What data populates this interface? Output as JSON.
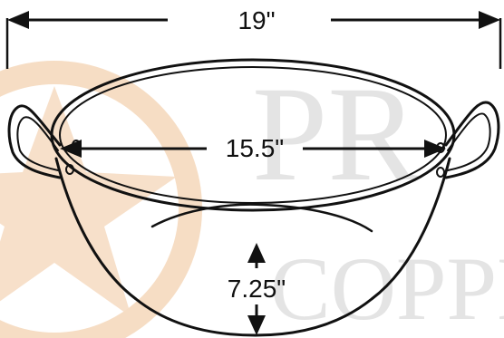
{
  "dimensions": {
    "overall_width": "19\"",
    "inner_diameter": "15.5\"",
    "depth": "7.25\""
  },
  "watermark": {
    "line1": "PR",
    "line2": "COPPE"
  },
  "colors": {
    "line": "#111111",
    "watermark_text": "#e4e4e4",
    "watermark_star": "#f6ddc4",
    "background": "#ffffff"
  }
}
